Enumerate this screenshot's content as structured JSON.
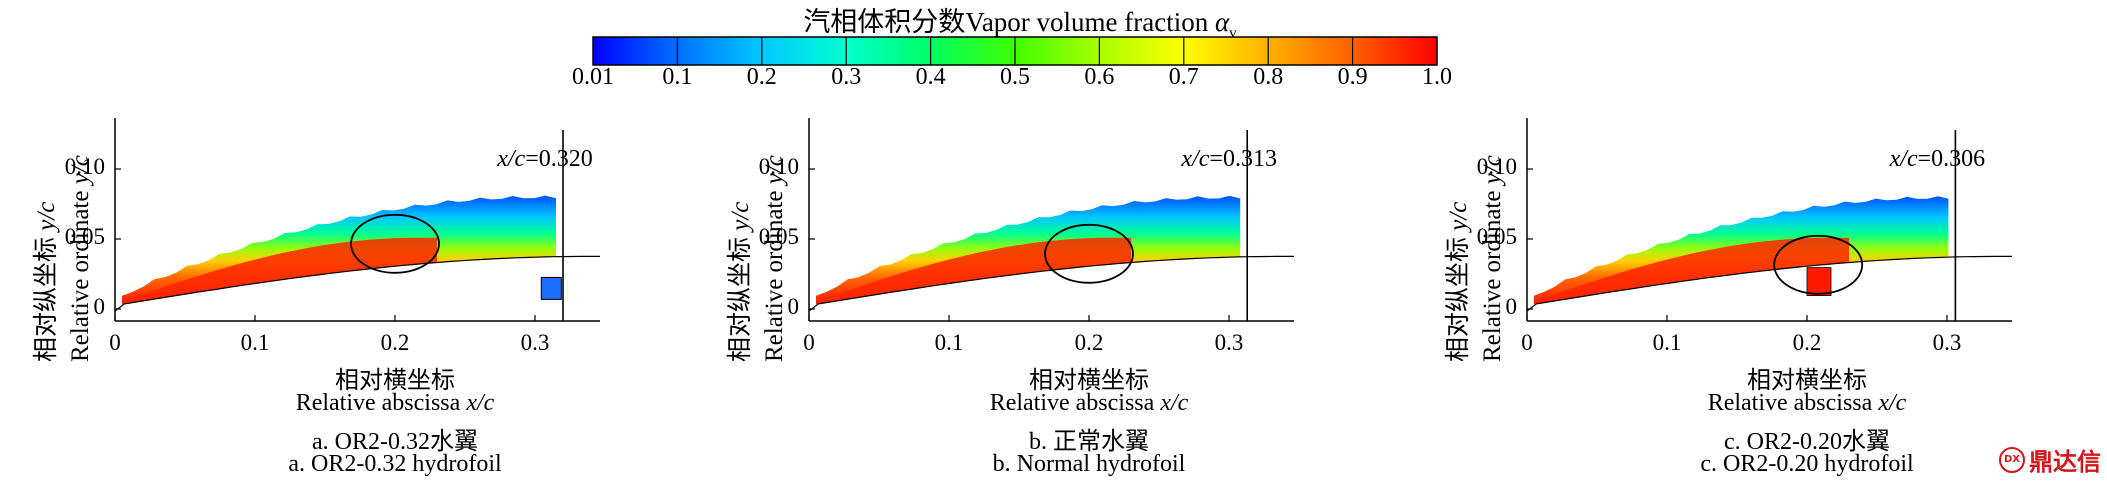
{
  "colorbar": {
    "title_cn": "汽相体积分数Vapor volume fraction ",
    "title_symbol": "α",
    "title_sub": "v",
    "ticks": [
      "0.01",
      "0.1",
      "0.2",
      "0.3",
      "0.4",
      "0.5",
      "0.6",
      "0.7",
      "0.8",
      "0.9",
      "1.0"
    ],
    "colors": [
      "#0000ff",
      "#0070ff",
      "#00c8ff",
      "#00ffd0",
      "#00ff60",
      "#40ff00",
      "#a8ff00",
      "#ffff00",
      "#ffb000",
      "#ff6000",
      "#ff0000"
    ]
  },
  "axes": {
    "y_label_cn": "相对纵坐标 ",
    "y_label_en": "Relative ordinate ",
    "y_label_var": "y/c",
    "x_label_cn": "相对横坐标",
    "x_label_en": "Relative abscissa ",
    "x_label_var": "x/c",
    "y_ticks": [
      "0.10",
      "0.05",
      "0"
    ],
    "x_ticks": [
      "0",
      "0.1",
      "0.2",
      "0.3"
    ]
  },
  "panels": [
    {
      "cut_var": "x/c",
      "cut_value": "=0.320",
      "cut_x": 0.32,
      "caption_cn": "a. OR2-0.32水翼",
      "caption_en": "a. OR2-0.32 hydrofoil"
    },
    {
      "cut_var": "x/c",
      "cut_value": "=0.313",
      "cut_x": 0.313,
      "caption_cn": "b. 正常水翼",
      "caption_en": "b. Normal hydrofoil"
    },
    {
      "cut_var": "x/c",
      "cut_value": "=0.306",
      "cut_x": 0.306,
      "caption_cn": "c. OR2-0.20水翼",
      "caption_en": "c. OR2-0.20 hydrofoil"
    }
  ],
  "watermark": {
    "text": "鼎达信",
    "icon": "logo-icon"
  }
}
